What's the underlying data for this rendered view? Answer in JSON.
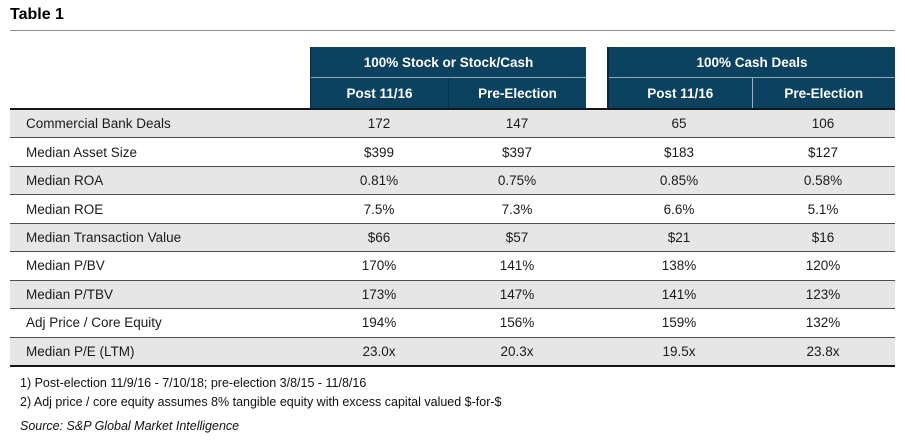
{
  "title": "Table 1",
  "table": {
    "groups": [
      {
        "label": "100% Stock or Stock/Cash",
        "subcols": [
          "Post 11/16",
          "Pre-Election"
        ]
      },
      {
        "label": "100% Cash Deals",
        "subcols": [
          "Post 11/16",
          "Pre-Election"
        ]
      }
    ],
    "rows": [
      {
        "label": "Commercial Bank Deals",
        "values": [
          "172",
          "147",
          "65",
          "106"
        ]
      },
      {
        "label": "Median Asset Size",
        "values": [
          "$399",
          "$397",
          "$183",
          "$127"
        ]
      },
      {
        "label": "Median ROA",
        "values": [
          "0.81%",
          "0.75%",
          "0.85%",
          "0.58%"
        ]
      },
      {
        "label": "Median ROE",
        "values": [
          "7.5%",
          "7.3%",
          "6.6%",
          "5.1%"
        ]
      },
      {
        "label": "Median Transaction Value",
        "values": [
          "$66",
          "$57",
          "$21",
          "$16"
        ]
      },
      {
        "label": "Median P/BV",
        "values": [
          "170%",
          "141%",
          "138%",
          "120%"
        ]
      },
      {
        "label": "Median P/TBV",
        "values": [
          "173%",
          "147%",
          "141%",
          "123%"
        ]
      },
      {
        "label": "Adj Price / Core Equity",
        "values": [
          "194%",
          "156%",
          "159%",
          "132%"
        ]
      },
      {
        "label": "Median P/E (LTM)",
        "values": [
          "23.0x",
          "20.3x",
          "19.5x",
          "23.8x"
        ]
      }
    ]
  },
  "footnotes": [
    "1) Post-election 11/9/16 - 7/10/18; pre-election 3/8/15 - 11/8/16",
    "2) Adj price / core equity assumes 8% tangible equity with excess capital valued $-for-$"
  ],
  "source": "Source: S&P Global Market Intelligence",
  "colors": {
    "header_bg": "#0a4260",
    "header_divider": "#8fa8b8",
    "row_stripe": "#e6e6e6",
    "row_border": "#4e4e4e",
    "table_border": "#161616"
  }
}
